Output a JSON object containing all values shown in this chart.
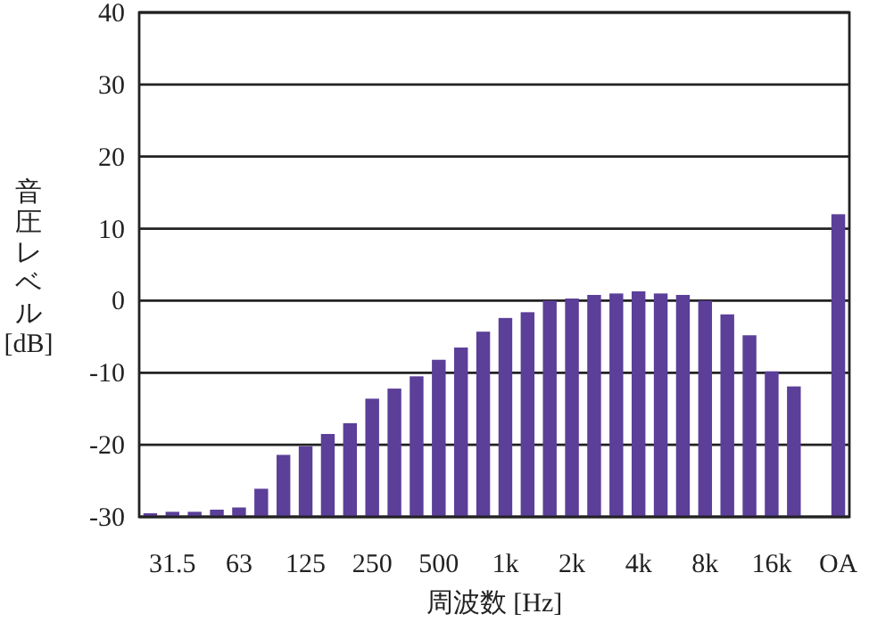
{
  "chart_data": {
    "type": "bar",
    "xlabel": "周波数 [Hz]",
    "ylabel": "音圧レベル [dB]",
    "categories": [
      null,
      "31.5",
      null,
      null,
      "63",
      null,
      null,
      "125",
      null,
      null,
      "250",
      null,
      null,
      "500",
      null,
      null,
      "1k",
      null,
      null,
      "2k",
      null,
      null,
      "4k",
      null,
      null,
      "8k",
      null,
      null,
      "16k",
      null,
      null,
      "OA"
    ],
    "values": [
      0.5,
      0.7,
      0.7,
      1.0,
      1.3,
      3.9,
      8.6,
      9.8,
      11.5,
      13.0,
      16.4,
      17.8,
      19.5,
      21.8,
      23.5,
      25.7,
      27.6,
      28.4,
      30,
      30.3,
      30.8,
      31.0,
      31.3,
      31.0,
      30.8,
      30,
      28.1,
      25.2,
      20.2,
      18.1,
      null,
      42
    ],
    "base": [
      -30,
      -30,
      -30,
      -30,
      -30,
      -30,
      -30,
      -30,
      -30,
      -30,
      -30,
      -30,
      -30,
      -30,
      -30,
      -30,
      -30,
      -30,
      -30,
      -30,
      -30,
      -30,
      -30,
      -30,
      -30,
      -30,
      -30,
      -30,
      -30,
      -30,
      null,
      -30
    ],
    "color": "#5b3f99",
    "ylim": [
      -30,
      40
    ],
    "yticks": [
      -30,
      -20,
      -10,
      0,
      10,
      20,
      30,
      40
    ],
    "grid": "y"
  }
}
